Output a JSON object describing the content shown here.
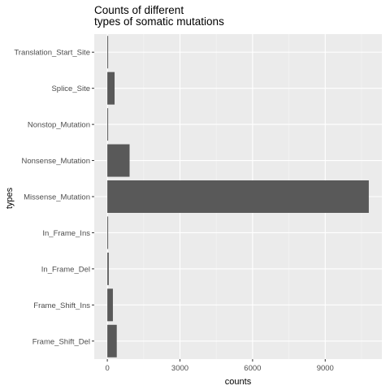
{
  "chart_data": {
    "type": "bar",
    "orientation": "horizontal",
    "title_lines": [
      "Counts of different",
      "types of somatic mutations"
    ],
    "xlabel": "counts",
    "ylabel": "types",
    "categories": [
      "Translation_Start_Site",
      "Splice_Site",
      "Nonstop_Mutation",
      "Nonsense_Mutation",
      "Missense_Mutation",
      "In_Frame_Ins",
      "In_Frame_Del",
      "Frame_Shift_Ins",
      "Frame_Shift_Del"
    ],
    "values": [
      20,
      300,
      15,
      920,
      10800,
      15,
      60,
      230,
      390
    ],
    "x_ticks": [
      0,
      3000,
      6000,
      9000
    ],
    "x_tick_labels": [
      "0",
      "3000",
      "6000",
      "9000"
    ],
    "xlim": [
      -540,
      11340
    ],
    "grid": true,
    "legend": "none",
    "colors": {
      "panel_background": "#ebebeb",
      "grid_major": "#ffffff",
      "grid_minor": "#f5f5f5",
      "bar_fill": "#595959",
      "tick_text": "#4d4d4d",
      "tick_mark": "#333333"
    }
  }
}
